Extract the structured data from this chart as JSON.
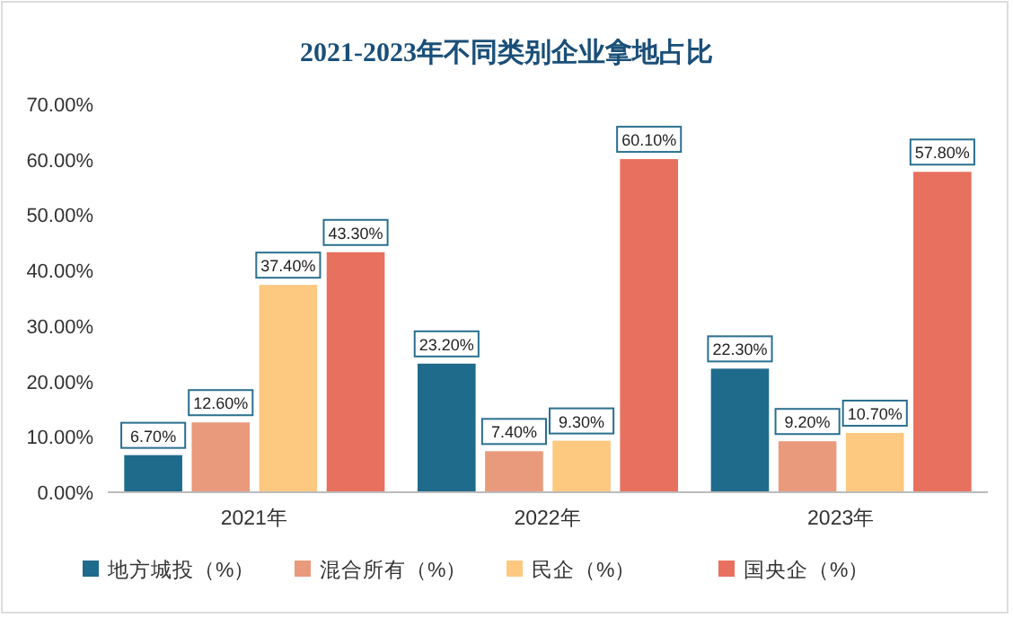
{
  "chart_data": {
    "type": "bar",
    "title": "2021-2023年不同类别企业拿地占比",
    "categories": [
      "2021年",
      "2022年",
      "2023年"
    ],
    "series": [
      {
        "name": "地方城投（%）",
        "color": "#1f6b8c",
        "values": [
          6.7,
          23.2,
          22.3
        ],
        "value_labels": [
          "6.70%",
          "23.20%",
          "22.30%"
        ]
      },
      {
        "name": "混合所有（%）",
        "color": "#e99a7c",
        "values": [
          12.6,
          7.4,
          9.2
        ],
        "value_labels": [
          "12.60%",
          "7.40%",
          "9.20%"
        ]
      },
      {
        "name": "民企（%）",
        "color": "#fdc880",
        "values": [
          37.4,
          9.3,
          10.7
        ],
        "value_labels": [
          "37.40%",
          "9.30%",
          "10.70%"
        ]
      },
      {
        "name": "国央企（%）",
        "color": "#e8705f",
        "values": [
          43.3,
          60.1,
          57.8
        ],
        "value_labels": [
          "43.30%",
          "60.10%",
          "57.80%"
        ]
      }
    ],
    "ylim": [
      0,
      70
    ],
    "yticks": [
      {
        "value": 0,
        "label": "0.00%"
      },
      {
        "value": 10,
        "label": "10.00%"
      },
      {
        "value": 20,
        "label": "20.00%"
      },
      {
        "value": 30,
        "label": "30.00%"
      },
      {
        "value": 40,
        "label": "40.00%"
      },
      {
        "value": 50,
        "label": "50.00%"
      },
      {
        "value": 60,
        "label": "60.00%"
      },
      {
        "value": 70,
        "label": "70.00%"
      }
    ],
    "grid": false,
    "legend": "bottom"
  }
}
